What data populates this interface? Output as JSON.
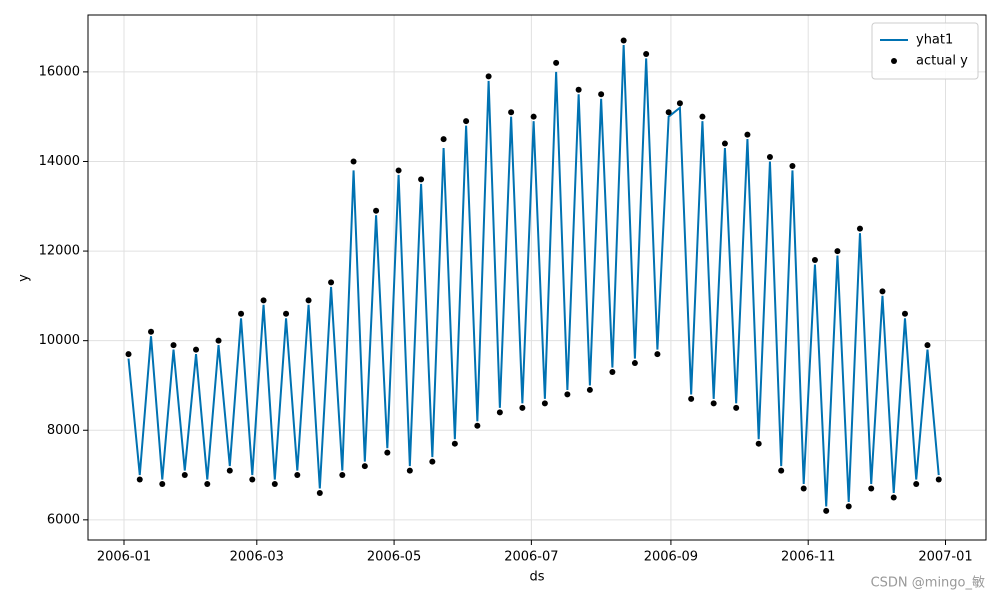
{
  "chart_data": {
    "type": "line",
    "x_label": "ds",
    "y_label": "y",
    "x": [
      "2006-01-03",
      "2006-01-08",
      "2006-01-13",
      "2006-01-18",
      "2006-01-23",
      "2006-01-28",
      "2006-02-02",
      "2006-02-07",
      "2006-02-12",
      "2006-02-17",
      "2006-02-22",
      "2006-02-27",
      "2006-03-04",
      "2006-03-09",
      "2006-03-14",
      "2006-03-19",
      "2006-03-24",
      "2006-03-29",
      "2006-04-03",
      "2006-04-08",
      "2006-04-13",
      "2006-04-18",
      "2006-04-23",
      "2006-04-28",
      "2006-05-03",
      "2006-05-08",
      "2006-05-13",
      "2006-05-18",
      "2006-05-23",
      "2006-05-28",
      "2006-06-02",
      "2006-06-07",
      "2006-06-12",
      "2006-06-17",
      "2006-06-22",
      "2006-06-27",
      "2006-07-02",
      "2006-07-07",
      "2006-07-12",
      "2006-07-17",
      "2006-07-22",
      "2006-07-27",
      "2006-08-01",
      "2006-08-06",
      "2006-08-11",
      "2006-08-16",
      "2006-08-21",
      "2006-08-26",
      "2006-08-31",
      "2006-09-05",
      "2006-09-10",
      "2006-09-15",
      "2006-09-20",
      "2006-09-25",
      "2006-09-30",
      "2006-10-05",
      "2006-10-10",
      "2006-10-15",
      "2006-10-20",
      "2006-10-25",
      "2006-10-30",
      "2006-11-04",
      "2006-11-09",
      "2006-11-14",
      "2006-11-19",
      "2006-11-24",
      "2006-11-29",
      "2006-12-04",
      "2006-12-09",
      "2006-12-14",
      "2006-12-19",
      "2006-12-24",
      "2006-12-29"
    ],
    "series": [
      {
        "name": "yhat1",
        "kind": "line",
        "color": "#0072b2",
        "values": [
          9600,
          7000,
          10100,
          6900,
          9800,
          7100,
          9700,
          6900,
          9900,
          7200,
          10500,
          7000,
          10800,
          6900,
          10500,
          7100,
          10800,
          6700,
          11200,
          7100,
          13800,
          7300,
          12800,
          7600,
          13700,
          7200,
          13500,
          7400,
          14300,
          7800,
          14800,
          8200,
          15800,
          8500,
          15000,
          8600,
          14900,
          8700,
          16000,
          8900,
          15500,
          9000,
          15400,
          9400,
          16600,
          9600,
          16300,
          9800,
          15000,
          15200,
          8800,
          14900,
          8700,
          14300,
          8600,
          14500,
          7800,
          14000,
          7200,
          13800,
          6800,
          11700,
          6300,
          11900,
          6400,
          12400,
          6800,
          11000,
          6600,
          10500,
          6900,
          9800,
          7000
        ]
      },
      {
        "name": "actual y",
        "kind": "scatter",
        "color": "#000000",
        "values": [
          9700,
          6900,
          10200,
          6800,
          9900,
          7000,
          9800,
          6800,
          10000,
          7100,
          10600,
          6900,
          10900,
          6800,
          10600,
          7000,
          10900,
          6600,
          11300,
          7000,
          14000,
          7200,
          12900,
          7500,
          13800,
          7100,
          13600,
          7300,
          14500,
          7700,
          14900,
          8100,
          15900,
          8400,
          15100,
          8500,
          15000,
          8600,
          16200,
          8800,
          15600,
          8900,
          15500,
          9300,
          16700,
          9500,
          16400,
          9700,
          15100,
          15300,
          8700,
          15000,
          8600,
          14400,
          8500,
          14600,
          7700,
          14100,
          7100,
          13900,
          6700,
          11800,
          6200,
          12000,
          6300,
          12500,
          6700,
          11100,
          6500,
          10600,
          6800,
          9900,
          6900
        ]
      }
    ],
    "xlim": [
      "2005-12-16",
      "2007-01-19"
    ],
    "xticks": [
      {
        "value": "2006-01-01",
        "label": "2006-01"
      },
      {
        "value": "2006-03-01",
        "label": "2006-03"
      },
      {
        "value": "2006-05-01",
        "label": "2006-05"
      },
      {
        "value": "2006-07-01",
        "label": "2006-07"
      },
      {
        "value": "2006-09-01",
        "label": "2006-09"
      },
      {
        "value": "2006-11-01",
        "label": "2006-11"
      },
      {
        "value": "2007-01-01",
        "label": "2007-01"
      }
    ],
    "ylim": [
      5550,
      17270
    ],
    "yticks": [
      6000,
      8000,
      10000,
      12000,
      14000,
      16000
    ],
    "grid": true,
    "legend": "upper right"
  },
  "watermark": "CSDN @mingo_敏"
}
